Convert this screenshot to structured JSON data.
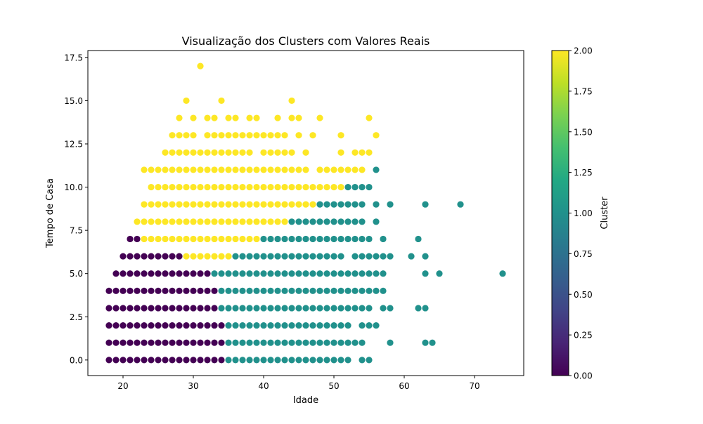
{
  "chart_data": {
    "type": "scatter",
    "title": "Visualização dos Clusters com Valores Reais",
    "xlabel": "Idade",
    "ylabel": "Tempo de Casa",
    "xlim": [
      15,
      77
    ],
    "ylim": [
      -0.9,
      17.9
    ],
    "xticks": [
      20,
      30,
      40,
      50,
      60,
      70
    ],
    "xtick_labels": [
      "20",
      "30",
      "40",
      "50",
      "60",
      "70"
    ],
    "yticks": [
      0,
      2.5,
      5,
      7.5,
      10,
      12.5,
      15,
      17.5
    ],
    "ytick_labels": [
      "0.0",
      "2.5",
      "5.0",
      "7.5",
      "10.0",
      "12.5",
      "15.0",
      "17.5"
    ],
    "grid": false,
    "colormap": "viridis",
    "cluster_colors": {
      "0": "#440154",
      "1": "#21918c",
      "2": "#fde725"
    },
    "colorbar": {
      "label": "Cluster",
      "min": 0,
      "max": 2,
      "ticks": [
        0,
        0.25,
        0.5,
        0.75,
        1,
        1.25,
        1.5,
        1.75,
        2
      ],
      "tick_labels": [
        "0.00",
        "0.25",
        "0.50",
        "0.75",
        "1.00",
        "1.25",
        "1.50",
        "1.75",
        "2.00"
      ],
      "stops": [
        "#440154",
        "#482475",
        "#414487",
        "#355f8d",
        "#2a788e",
        "#21918c",
        "#22a884",
        "#44bf70",
        "#7ad151",
        "#bddf26",
        "#fde725"
      ]
    },
    "row_groups": [
      {
        "y": 0,
        "segments": [
          {
            "from": 18,
            "to": 34,
            "cluster": 0
          },
          {
            "from": 35,
            "to": 52,
            "cluster": 1
          }
        ],
        "points": [
          {
            "x": 54,
            "cluster": 1
          },
          {
            "x": 55,
            "cluster": 1
          }
        ]
      },
      {
        "y": 1,
        "segments": [
          {
            "from": 18,
            "to": 34,
            "cluster": 0
          },
          {
            "from": 35,
            "to": 54,
            "cluster": 1
          }
        ],
        "points": [
          {
            "x": 58,
            "cluster": 1
          },
          {
            "x": 63,
            "cluster": 1
          },
          {
            "x": 64,
            "cluster": 1
          }
        ]
      },
      {
        "y": 2,
        "segments": [
          {
            "from": 18,
            "to": 34,
            "cluster": 0
          },
          {
            "from": 35,
            "to": 52,
            "cluster": 1
          }
        ],
        "points": [
          {
            "x": 54,
            "cluster": 1
          },
          {
            "x": 55,
            "cluster": 1
          },
          {
            "x": 56,
            "cluster": 1
          }
        ]
      },
      {
        "y": 3,
        "segments": [
          {
            "from": 18,
            "to": 33,
            "cluster": 0
          },
          {
            "from": 34,
            "to": 55,
            "cluster": 1
          }
        ],
        "points": [
          {
            "x": 57,
            "cluster": 1
          },
          {
            "x": 58,
            "cluster": 1
          },
          {
            "x": 62,
            "cluster": 1
          },
          {
            "x": 63,
            "cluster": 1
          }
        ]
      },
      {
        "y": 4,
        "segments": [
          {
            "from": 18,
            "to": 33,
            "cluster": 0
          },
          {
            "from": 34,
            "to": 57,
            "cluster": 1
          }
        ],
        "points": []
      },
      {
        "y": 5,
        "segments": [
          {
            "from": 19,
            "to": 32,
            "cluster": 0
          },
          {
            "from": 33,
            "to": 57,
            "cluster": 1
          }
        ],
        "points": [
          {
            "x": 63,
            "cluster": 1
          },
          {
            "x": 65,
            "cluster": 1
          },
          {
            "x": 74,
            "cluster": 1
          }
        ]
      },
      {
        "y": 6,
        "segments": [
          {
            "from": 20,
            "to": 28,
            "cluster": 0
          },
          {
            "from": 29,
            "to": 35,
            "cluster": 2
          },
          {
            "from": 36,
            "to": 51,
            "cluster": 1
          }
        ],
        "points": [
          {
            "x": 53,
            "cluster": 1
          },
          {
            "x": 54,
            "cluster": 1
          },
          {
            "x": 55,
            "cluster": 1
          },
          {
            "x": 56,
            "cluster": 1
          },
          {
            "x": 57,
            "cluster": 1
          },
          {
            "x": 58,
            "cluster": 1
          },
          {
            "x": 61,
            "cluster": 1
          },
          {
            "x": 63,
            "cluster": 1
          }
        ]
      },
      {
        "y": 7,
        "segments": [
          {
            "from": 21,
            "to": 22,
            "cluster": 0
          },
          {
            "from": 23,
            "to": 39,
            "cluster": 2
          },
          {
            "from": 40,
            "to": 55,
            "cluster": 1
          }
        ],
        "points": [
          {
            "x": 57,
            "cluster": 1
          },
          {
            "x": 62,
            "cluster": 1
          }
        ]
      },
      {
        "y": 8,
        "segments": [
          {
            "from": 22,
            "to": 43,
            "cluster": 2
          },
          {
            "from": 44,
            "to": 54,
            "cluster": 1
          }
        ],
        "points": [
          {
            "x": 56,
            "cluster": 1
          }
        ]
      },
      {
        "y": 9,
        "segments": [
          {
            "from": 23,
            "to": 47,
            "cluster": 2
          },
          {
            "from": 48,
            "to": 54,
            "cluster": 1
          }
        ],
        "points": [
          {
            "x": 56,
            "cluster": 1
          },
          {
            "x": 58,
            "cluster": 1
          },
          {
            "x": 63,
            "cluster": 1
          },
          {
            "x": 68,
            "cluster": 1
          }
        ]
      },
      {
        "y": 10,
        "segments": [
          {
            "from": 24,
            "to": 51,
            "cluster": 2
          },
          {
            "from": 52,
            "to": 55,
            "cluster": 1
          }
        ],
        "points": []
      },
      {
        "y": 11,
        "segments": [
          {
            "from": 23,
            "to": 41,
            "cluster": 2
          }
        ],
        "points": [
          {
            "x": 42,
            "cluster": 2
          },
          {
            "x": 43,
            "cluster": 2
          },
          {
            "x": 44,
            "cluster": 2
          },
          {
            "x": 45,
            "cluster": 2
          },
          {
            "x": 46,
            "cluster": 2
          },
          {
            "x": 48,
            "cluster": 2
          },
          {
            "x": 49,
            "cluster": 2
          },
          {
            "x": 50,
            "cluster": 2
          },
          {
            "x": 51,
            "cluster": 2
          },
          {
            "x": 52,
            "cluster": 2
          },
          {
            "x": 53,
            "cluster": 2
          },
          {
            "x": 54,
            "cluster": 2
          },
          {
            "x": 56,
            "cluster": 1
          }
        ]
      },
      {
        "y": 12,
        "segments": [
          {
            "from": 26,
            "to": 38,
            "cluster": 2
          }
        ],
        "points": [
          {
            "x": 40,
            "cluster": 2
          },
          {
            "x": 41,
            "cluster": 2
          },
          {
            "x": 42,
            "cluster": 2
          },
          {
            "x": 43,
            "cluster": 2
          },
          {
            "x": 44,
            "cluster": 2
          },
          {
            "x": 46,
            "cluster": 2
          },
          {
            "x": 51,
            "cluster": 2
          },
          {
            "x": 53,
            "cluster": 2
          },
          {
            "x": 54,
            "cluster": 2
          },
          {
            "x": 55,
            "cluster": 2
          }
        ]
      },
      {
        "y": 13,
        "segments": [
          {
            "from": 27,
            "to": 30,
            "cluster": 2
          }
        ],
        "points": [
          {
            "x": 32,
            "cluster": 2
          },
          {
            "x": 33,
            "cluster": 2
          },
          {
            "x": 34,
            "cluster": 2
          },
          {
            "x": 35,
            "cluster": 2
          },
          {
            "x": 36,
            "cluster": 2
          },
          {
            "x": 37,
            "cluster": 2
          },
          {
            "x": 38,
            "cluster": 2
          },
          {
            "x": 39,
            "cluster": 2
          },
          {
            "x": 40,
            "cluster": 2
          },
          {
            "x": 41,
            "cluster": 2
          },
          {
            "x": 42,
            "cluster": 2
          },
          {
            "x": 43,
            "cluster": 2
          },
          {
            "x": 45,
            "cluster": 2
          },
          {
            "x": 47,
            "cluster": 2
          },
          {
            "x": 51,
            "cluster": 2
          },
          {
            "x": 56,
            "cluster": 2
          }
        ]
      },
      {
        "y": 14,
        "segments": [],
        "points": [
          {
            "x": 28,
            "cluster": 2
          },
          {
            "x": 30,
            "cluster": 2
          },
          {
            "x": 32,
            "cluster": 2
          },
          {
            "x": 33,
            "cluster": 2
          },
          {
            "x": 35,
            "cluster": 2
          },
          {
            "x": 36,
            "cluster": 2
          },
          {
            "x": 38,
            "cluster": 2
          },
          {
            "x": 39,
            "cluster": 2
          },
          {
            "x": 42,
            "cluster": 2
          },
          {
            "x": 44,
            "cluster": 2
          },
          {
            "x": 45,
            "cluster": 2
          },
          {
            "x": 48,
            "cluster": 2
          },
          {
            "x": 55,
            "cluster": 2
          }
        ]
      },
      {
        "y": 15,
        "segments": [],
        "points": [
          {
            "x": 29,
            "cluster": 2
          },
          {
            "x": 34,
            "cluster": 2
          },
          {
            "x": 44,
            "cluster": 2
          }
        ]
      },
      {
        "y": 17,
        "segments": [],
        "points": [
          {
            "x": 31,
            "cluster": 2
          }
        ]
      }
    ]
  }
}
